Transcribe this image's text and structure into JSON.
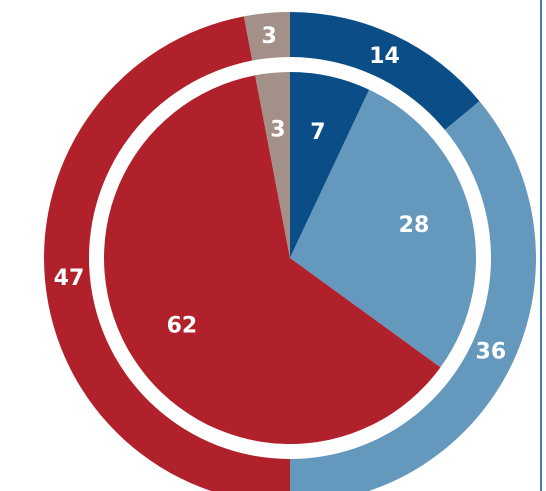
{
  "chart_data": {
    "type": "pie",
    "colors": [
      "#0b4e87",
      "#6598bd",
      "#b0212b",
      "#a39089"
    ],
    "series": [
      {
        "values": [
          14,
          36,
          47,
          3
        ]
      },
      {
        "values": [
          7,
          28,
          62,
          3
        ]
      }
    ]
  }
}
